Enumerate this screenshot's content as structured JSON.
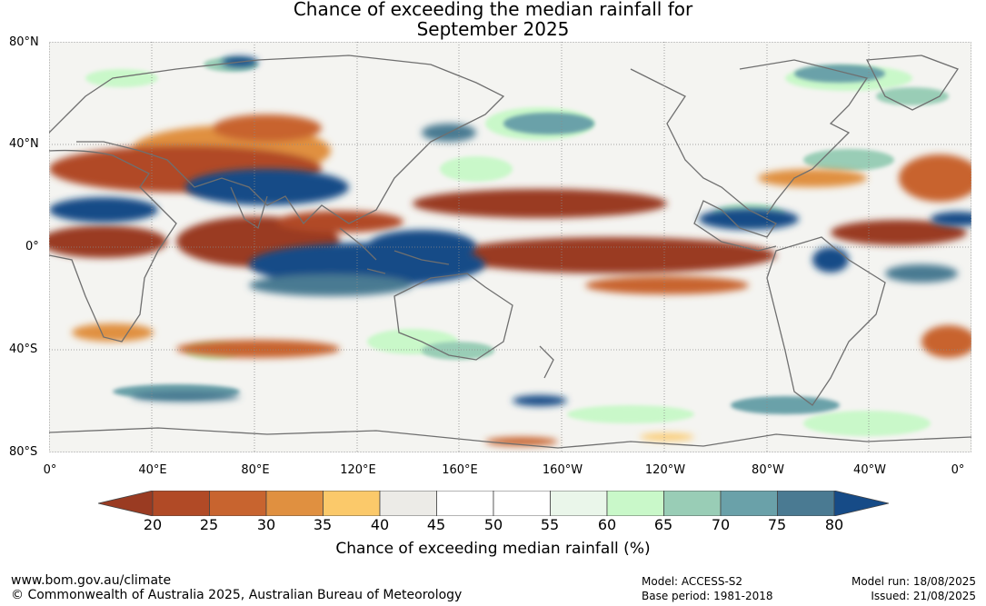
{
  "title": {
    "line1": "Chance of exceeding the median rainfall for",
    "line2": "September 2025"
  },
  "map": {
    "lat_labels": [
      "80°N",
      "40°N",
      "0°",
      "40°S",
      "80°S"
    ],
    "lon_labels": [
      "0°",
      "40°E",
      "80°E",
      "120°E",
      "160°E",
      "160°W",
      "120°W",
      "80°W",
      "40°W",
      "0°"
    ]
  },
  "colorbar": {
    "ticks": [
      "20",
      "25",
      "30",
      "35",
      "40",
      "45",
      "50",
      "55",
      "60",
      "65",
      "70",
      "75",
      "80"
    ],
    "colors": [
      "#9a3b22",
      "#b14a26",
      "#c8642f",
      "#e09040",
      "#fbc96a",
      "#ecebe7",
      "#ffffff",
      "#ffffff",
      "#eaf6ea",
      "#c9f8c9",
      "#99cdb6",
      "#6aa1a9",
      "#4a7a92",
      "#164b87"
    ],
    "label": "Chance of exceeding median rainfall (%)"
  },
  "footer": {
    "url": "www.bom.gov.au/climate",
    "copyright": "© Commonwealth of Australia 2025, Australian Bureau of Meteorology",
    "model": "Model: ACCESS-S2",
    "base_period": "Base period: 1981-2018",
    "model_run": "Model run: 18/08/2025",
    "issued": "Issued: 21/08/2025"
  }
}
